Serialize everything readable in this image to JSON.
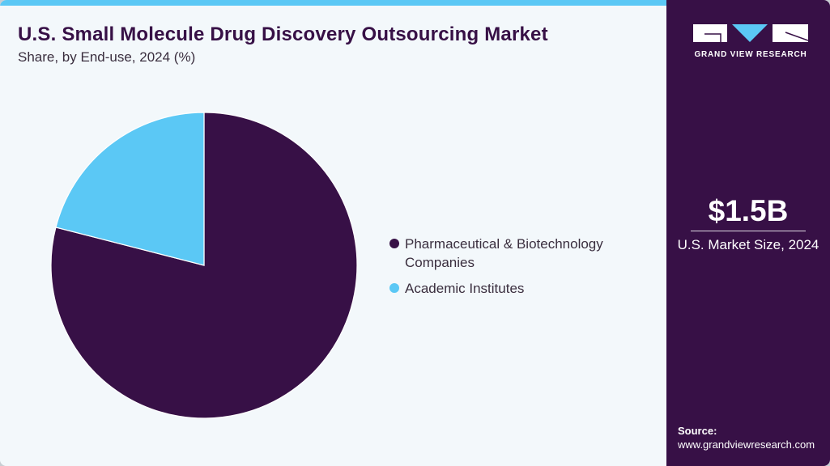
{
  "header": {
    "title": "U.S. Small Molecule Drug Discovery Outsourcing Market",
    "subtitle": "Share, by End-use, 2024 (%)"
  },
  "legend": [
    {
      "label": "Pharmaceutical & Biotechnology Companies",
      "color": "#371046"
    },
    {
      "label": "Academic Institutes",
      "color": "#5bc8f5"
    }
  ],
  "sidebar": {
    "brand": "GRAND VIEW RESEARCH",
    "market_size_value": "$1.5B",
    "market_size_label": "U.S. Market Size, 2024",
    "source_heading": "Source:",
    "source_url": "www.grandviewresearch.com"
  },
  "colors": {
    "primary": "#371046",
    "accent": "#5bc8f5",
    "background": "#f3f8fb"
  },
  "chart_data": {
    "type": "pie",
    "title": "U.S. Small Molecule Drug Discovery Outsourcing Market",
    "subtitle": "Share, by End-use, 2024 (%)",
    "categories": [
      "Pharmaceutical & Biotechnology Companies",
      "Academic Institutes"
    ],
    "values": [
      79,
      21
    ],
    "colors": [
      "#371046",
      "#5bc8f5"
    ],
    "start_angle": "12 o'clock, clockwise",
    "legend_position": "right"
  }
}
